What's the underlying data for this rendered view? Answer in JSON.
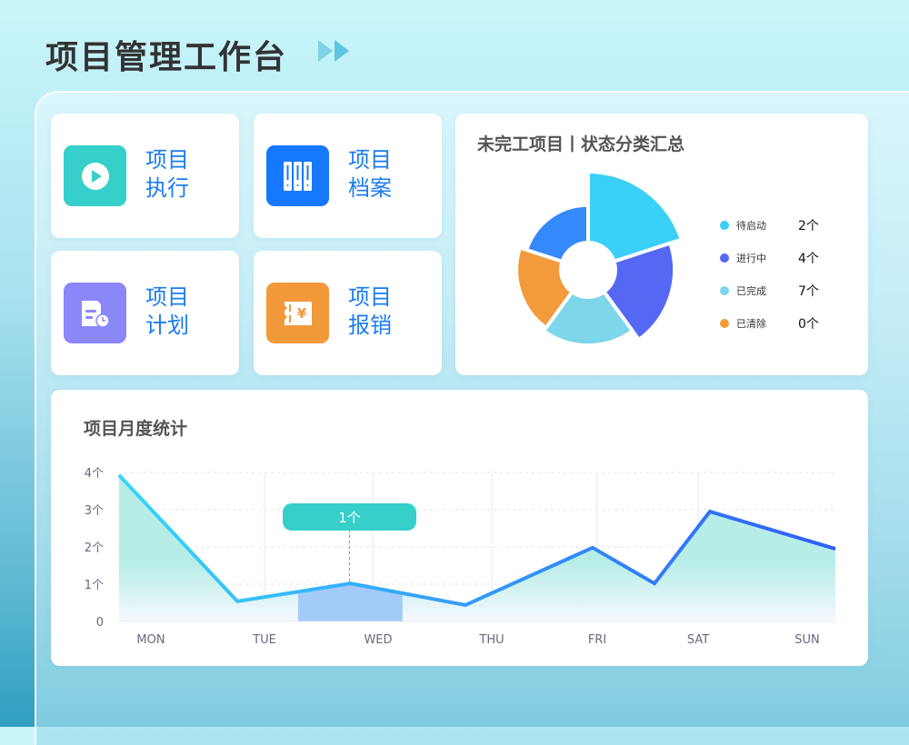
{
  "header": {
    "title": "项目管理工作台",
    "icon": "double-chevron-right-icon"
  },
  "tiles": [
    {
      "line1": "项目",
      "line2": "执行",
      "icon": "play-icon",
      "color": "#36cfc9"
    },
    {
      "line1": "项目",
      "line2": "档案",
      "icon": "archive-binders-icon",
      "color": "#1677ff"
    },
    {
      "line1": "项目",
      "line2": "计划",
      "icon": "plan-clock-icon",
      "color": "#8b87fb"
    },
    {
      "line1": "项目",
      "line2": "报销",
      "icon": "ticket-yen-icon",
      "color": "#f2993c"
    }
  ],
  "status": {
    "title": "未完工项目丨状态分类汇总",
    "legend": [
      {
        "label": "待启动",
        "count": "2个",
        "color": "#3bd0f7"
      },
      {
        "label": "进行中",
        "count": "4个",
        "color": "#5468f4"
      },
      {
        "label": "已完成",
        "count": "7个",
        "color": "#7dd6ea"
      },
      {
        "label": "已清除",
        "count": "0个",
        "color": "#f29a3c"
      }
    ]
  },
  "monthly": {
    "title": "项目月度统计"
  },
  "chart_data": [
    {
      "type": "pie",
      "variant": "rose",
      "slices": [
        {
          "color": "#3bd0f7",
          "relative_radius": 1.0
        },
        {
          "color": "#5468f4",
          "relative_radius": 0.88
        },
        {
          "color": "#7dd6ea",
          "relative_radius": 0.77
        },
        {
          "color": "#f29a3c",
          "relative_radius": 0.73
        },
        {
          "color": "#3489fb",
          "relative_radius": 0.66
        }
      ]
    },
    {
      "type": "area",
      "categories": [
        "MON",
        "TUE",
        "WED",
        "THU",
        "FRI",
        "SAT",
        "SUN"
      ],
      "y_ticks": [
        "0",
        "1个",
        "2个",
        "3个",
        "4个"
      ],
      "ylim": [
        0,
        4
      ],
      "grid": true,
      "points": [
        [
          -0.34,
          3.93
        ],
        [
          0.75,
          0.54
        ],
        [
          1.79,
          1.02
        ],
        [
          2.85,
          0.44
        ],
        [
          4.02,
          1.98
        ],
        [
          4.59,
          1.02
        ],
        [
          5.1,
          2.95
        ],
        [
          6.27,
          1.95
        ]
      ],
      "highlight": {
        "from": 1.31,
        "to": 2.27,
        "tooltip": "1个"
      },
      "line_colors": [
        "#36d6fb",
        "#2f5ef8"
      ],
      "fill_color": "#b8ede7",
      "highlight_color": "#a2cbfa",
      "tooltip_color": "#36cfc9"
    }
  ]
}
